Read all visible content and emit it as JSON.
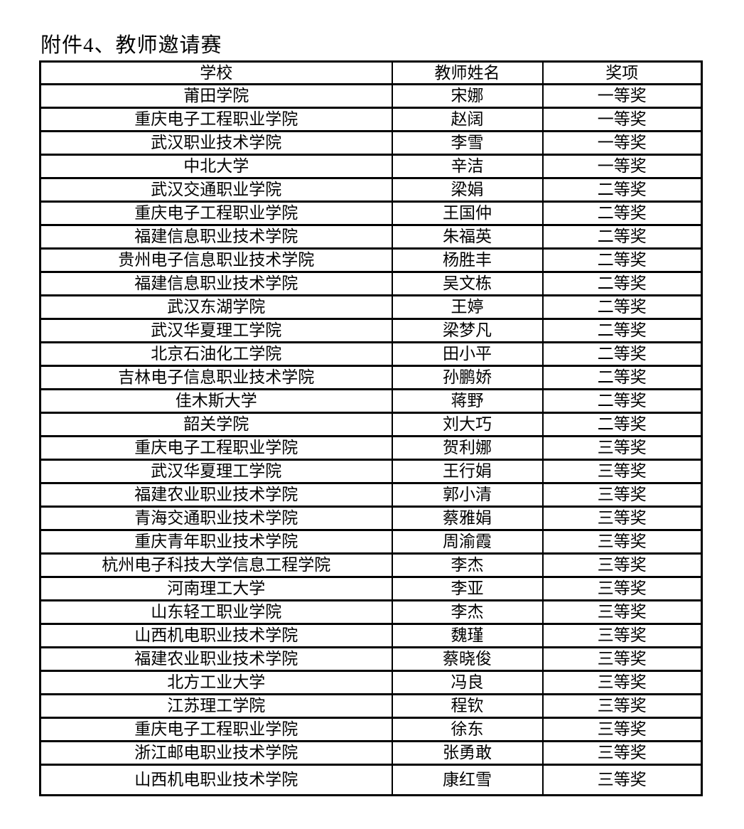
{
  "title": "附件4、教师邀请赛",
  "table": {
    "columns": [
      "学校",
      "教师姓名",
      "奖项"
    ],
    "rows": [
      {
        "school": "莆田学院",
        "name": "宋娜",
        "award": "一等奖"
      },
      {
        "school": "重庆电子工程职业学院",
        "name": "赵阔",
        "award": "一等奖"
      },
      {
        "school": "武汉职业技术学院",
        "name": "李雪",
        "award": "一等奖"
      },
      {
        "school": "中北大学",
        "name": "辛洁",
        "award": "一等奖"
      },
      {
        "school": "武汉交通职业学院",
        "name": "梁娟",
        "award": "二等奖"
      },
      {
        "school": "重庆电子工程职业学院",
        "name": "王国仲",
        "award": "二等奖"
      },
      {
        "school": "福建信息职业技术学院",
        "name": "朱福英",
        "award": "二等奖"
      },
      {
        "school": "贵州电子信息职业技术学院",
        "name": "杨胜丰",
        "award": "二等奖"
      },
      {
        "school": "福建信息职业技术学院",
        "name": "吴文栋",
        "award": "二等奖"
      },
      {
        "school": "武汉东湖学院",
        "name": "王婷",
        "award": "二等奖"
      },
      {
        "school": "武汉华夏理工学院",
        "name": "梁梦凡",
        "award": "二等奖"
      },
      {
        "school": "北京石油化工学院",
        "name": "田小平",
        "award": "二等奖"
      },
      {
        "school": "吉林电子信息职业技术学院",
        "name": "孙鹏娇",
        "award": "二等奖"
      },
      {
        "school": "佳木斯大学",
        "name": "蒋野",
        "award": "二等奖"
      },
      {
        "school": "韶关学院",
        "name": "刘大巧",
        "award": "二等奖"
      },
      {
        "school": "重庆电子工程职业学院",
        "name": "贺利娜",
        "award": "三等奖"
      },
      {
        "school": "武汉华夏理工学院",
        "name": "王行娟",
        "award": "三等奖"
      },
      {
        "school": "福建农业职业技术学院",
        "name": "郭小清",
        "award": "三等奖"
      },
      {
        "school": "青海交通职业技术学院",
        "name": "蔡雅娟",
        "award": "三等奖"
      },
      {
        "school": "重庆青年职业技术学院",
        "name": "周渝霞",
        "award": "三等奖"
      },
      {
        "school": "杭州电子科技大学信息工程学院",
        "name": "李杰",
        "award": "三等奖"
      },
      {
        "school": "河南理工大学",
        "name": "李亚",
        "award": "三等奖"
      },
      {
        "school": "山东轻工职业学院",
        "name": "李杰",
        "award": "三等奖"
      },
      {
        "school": "山西机电职业技术学院",
        "name": "魏瑾",
        "award": "三等奖"
      },
      {
        "school": "福建农业职业技术学院",
        "name": "蔡晓俊",
        "award": "三等奖"
      },
      {
        "school": "北方工业大学",
        "name": "冯良",
        "award": "三等奖"
      },
      {
        "school": "江苏理工学院",
        "name": "程钦",
        "award": "三等奖"
      },
      {
        "school": "重庆电子工程职业学院",
        "name": "徐东",
        "award": "三等奖"
      },
      {
        "school": "浙江邮电职业技术学院",
        "name": "张勇敢",
        "award": "三等奖"
      }
    ],
    "partial_row": {
      "school": "山西机电职业技术学院",
      "name": "康红雪",
      "award": "三等奖",
      "note": "clipped-at-bottom-edge"
    }
  },
  "colors": {
    "text": "#000000",
    "border": "#000000",
    "background": "#ffffff"
  }
}
